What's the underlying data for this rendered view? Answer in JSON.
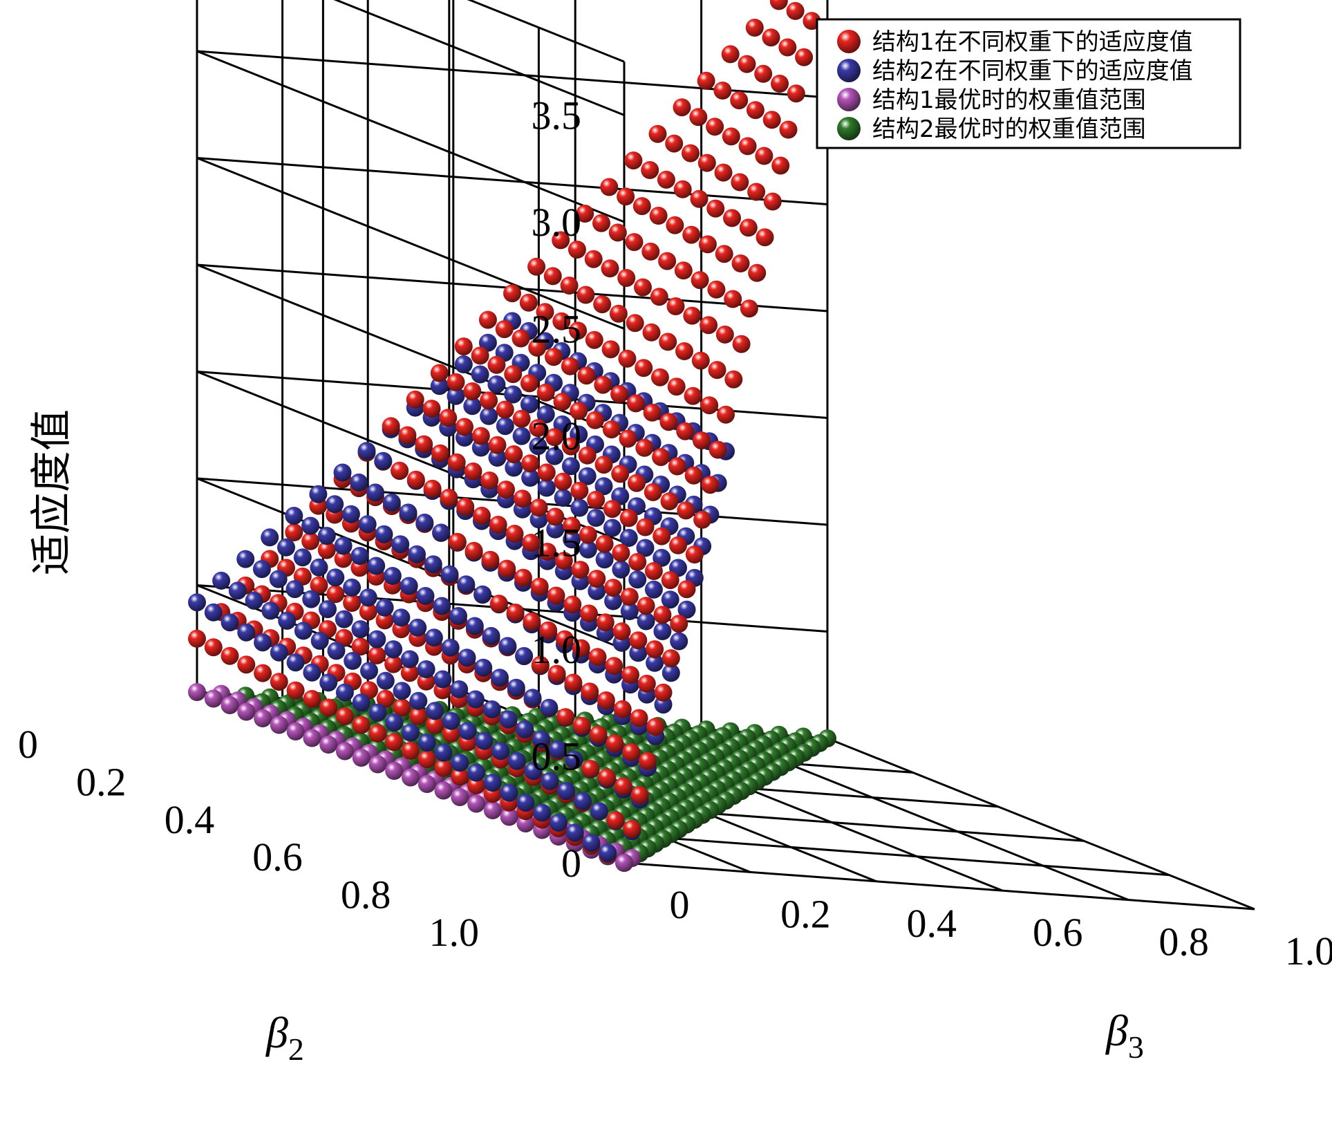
{
  "chart_data": {
    "type": "scatter",
    "zlabel": "适应度值",
    "x_axis": {
      "symbol": "β",
      "subscript": "2",
      "ticks": [
        "0",
        "0.2",
        "0.4",
        "0.6",
        "0.8",
        "1.0"
      ],
      "range": [
        0,
        1
      ]
    },
    "y_axis": {
      "symbol": "β",
      "subscript": "3",
      "ticks": [
        "0",
        "0.2",
        "0.4",
        "0.6",
        "0.8",
        "1.0"
      ],
      "range": [
        0,
        1
      ]
    },
    "z_axis": {
      "ticks": [
        "0",
        "0.5",
        "1.0",
        "1.5",
        "2.0",
        "2.5",
        "3.0",
        "3.5"
      ],
      "range": [
        0,
        3.75
      ]
    },
    "grid": true,
    "legend_position": "top-right",
    "series": [
      {
        "name": "结构1在不同权重下的适应度值",
        "color": "#e8251f",
        "surface": {
          "c0": 0.25,
          "c2": -0.25,
          "c3": 3.45
        }
      },
      {
        "name": "结构2在不同权重下的适应度值",
        "color": "#3a3aa8",
        "surface": {
          "c0": 0.42,
          "c2": -0.42,
          "c3": 2.85
        }
      },
      {
        "name": "结构1最优时的权重值范围",
        "color": "#b354b8",
        "surface": {
          "c0": 0.0,
          "c2": 0.0,
          "c3": 0.0
        }
      },
      {
        "name": "结构2最优时的权重值范围",
        "color": "#2f7a2a",
        "surface": {
          "c0": 0.0,
          "c2": 0.0,
          "c3": 0.0
        }
      }
    ]
  }
}
